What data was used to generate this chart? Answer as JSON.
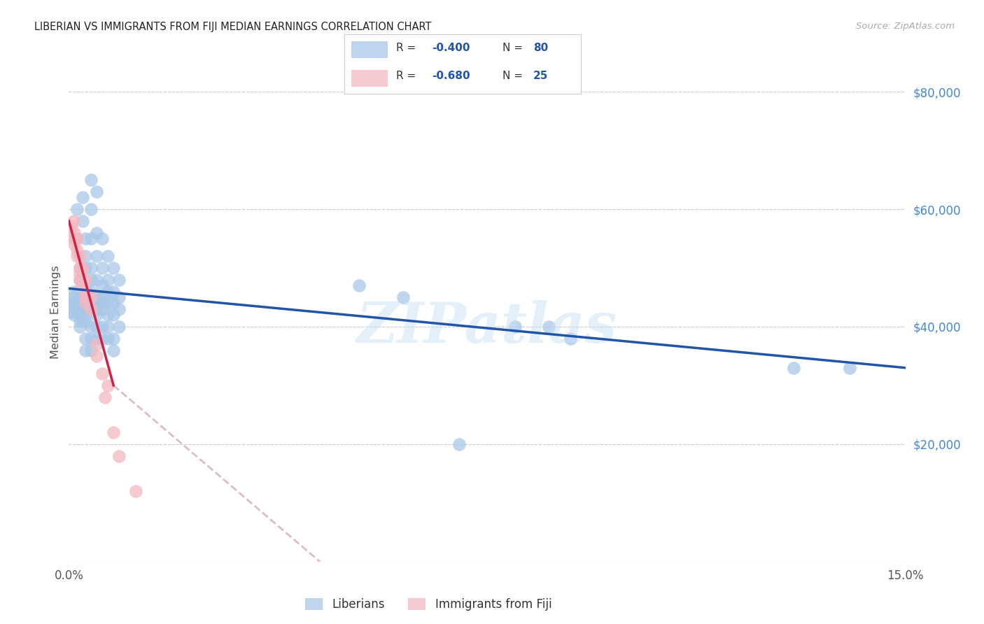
{
  "title": "LIBERIAN VS IMMIGRANTS FROM FIJI MEDIAN EARNINGS CORRELATION CHART",
  "source": "Source: ZipAtlas.com",
  "ylabel": "Median Earnings",
  "legend_label1": "Liberians",
  "legend_label2": "Immigrants from Fiji",
  "blue_color": "#a8c8e8",
  "pink_color": "#f4b8c0",
  "trendline_blue": "#2255aa",
  "trendline_pink": "#cc2244",
  "yticks": [
    0,
    20000,
    40000,
    60000,
    80000
  ],
  "ytick_labels": [
    "",
    "$20,000",
    "$40,000",
    "$60,000",
    "$80,000"
  ],
  "xlim": [
    0.0,
    0.15
  ],
  "ylim": [
    0,
    85000
  ],
  "blue_points": [
    [
      0.0005,
      44000
    ],
    [
      0.0005,
      42500
    ],
    [
      0.0008,
      45000
    ],
    [
      0.001,
      46000
    ],
    [
      0.001,
      43000
    ],
    [
      0.001,
      44000
    ],
    [
      0.001,
      42000
    ],
    [
      0.0012,
      55000
    ],
    [
      0.0015,
      60000
    ],
    [
      0.002,
      50000
    ],
    [
      0.002,
      48000
    ],
    [
      0.002,
      45000
    ],
    [
      0.002,
      44000
    ],
    [
      0.002,
      43000
    ],
    [
      0.002,
      42000
    ],
    [
      0.002,
      41000
    ],
    [
      0.002,
      40000
    ],
    [
      0.0025,
      62000
    ],
    [
      0.0025,
      58000
    ],
    [
      0.003,
      55000
    ],
    [
      0.003,
      52000
    ],
    [
      0.003,
      50000
    ],
    [
      0.003,
      47000
    ],
    [
      0.003,
      44000
    ],
    [
      0.003,
      43000
    ],
    [
      0.003,
      42000
    ],
    [
      0.003,
      41000
    ],
    [
      0.003,
      38000
    ],
    [
      0.003,
      36000
    ],
    [
      0.004,
      65000
    ],
    [
      0.004,
      60000
    ],
    [
      0.004,
      55000
    ],
    [
      0.004,
      50000
    ],
    [
      0.004,
      48000
    ],
    [
      0.004,
      46000
    ],
    [
      0.004,
      44000
    ],
    [
      0.004,
      43000
    ],
    [
      0.004,
      40000
    ],
    [
      0.004,
      38000
    ],
    [
      0.004,
      36000
    ],
    [
      0.005,
      63000
    ],
    [
      0.005,
      56000
    ],
    [
      0.005,
      52000
    ],
    [
      0.005,
      48000
    ],
    [
      0.005,
      45000
    ],
    [
      0.005,
      44000
    ],
    [
      0.005,
      43000
    ],
    [
      0.005,
      42000
    ],
    [
      0.005,
      40000
    ],
    [
      0.005,
      38000
    ],
    [
      0.006,
      55000
    ],
    [
      0.006,
      50000
    ],
    [
      0.006,
      47000
    ],
    [
      0.006,
      45000
    ],
    [
      0.006,
      44000
    ],
    [
      0.006,
      43000
    ],
    [
      0.006,
      40000
    ],
    [
      0.006,
      38000
    ],
    [
      0.007,
      52000
    ],
    [
      0.007,
      48000
    ],
    [
      0.007,
      46000
    ],
    [
      0.007,
      44000
    ],
    [
      0.007,
      42000
    ],
    [
      0.007,
      40000
    ],
    [
      0.007,
      38000
    ],
    [
      0.008,
      50000
    ],
    [
      0.008,
      46000
    ],
    [
      0.008,
      44000
    ],
    [
      0.008,
      42000
    ],
    [
      0.008,
      38000
    ],
    [
      0.008,
      36000
    ],
    [
      0.009,
      48000
    ],
    [
      0.009,
      45000
    ],
    [
      0.009,
      43000
    ],
    [
      0.009,
      40000
    ],
    [
      0.052,
      47000
    ],
    [
      0.06,
      45000
    ],
    [
      0.07,
      20000
    ],
    [
      0.08,
      40000
    ],
    [
      0.086,
      40000
    ],
    [
      0.09,
      38000
    ],
    [
      0.13,
      33000
    ],
    [
      0.14,
      33000
    ]
  ],
  "pink_points": [
    [
      0.0005,
      57000
    ],
    [
      0.0008,
      58000
    ],
    [
      0.001,
      56000
    ],
    [
      0.001,
      55000
    ],
    [
      0.001,
      54000
    ],
    [
      0.0015,
      55000
    ],
    [
      0.0015,
      53000
    ],
    [
      0.0015,
      52000
    ],
    [
      0.002,
      52000
    ],
    [
      0.002,
      50000
    ],
    [
      0.002,
      49000
    ],
    [
      0.002,
      48000
    ],
    [
      0.0025,
      50000
    ],
    [
      0.0025,
      48000
    ],
    [
      0.0025,
      47000
    ],
    [
      0.003,
      48000
    ],
    [
      0.003,
      46000
    ],
    [
      0.003,
      45000
    ],
    [
      0.003,
      44000
    ],
    [
      0.004,
      45000
    ],
    [
      0.004,
      43000
    ],
    [
      0.005,
      37000
    ],
    [
      0.005,
      35000
    ],
    [
      0.006,
      32000
    ],
    [
      0.0065,
      28000
    ],
    [
      0.007,
      30000
    ],
    [
      0.008,
      22000
    ],
    [
      0.009,
      18000
    ],
    [
      0.012,
      12000
    ]
  ],
  "blue_trendline": [
    [
      0.0,
      46500
    ],
    [
      0.15,
      33000
    ]
  ],
  "pink_trendline_solid": [
    [
      0.0,
      58000
    ],
    [
      0.008,
      30000
    ]
  ],
  "pink_trendline_dash": [
    [
      0.008,
      30000
    ],
    [
      0.045,
      0
    ]
  ]
}
